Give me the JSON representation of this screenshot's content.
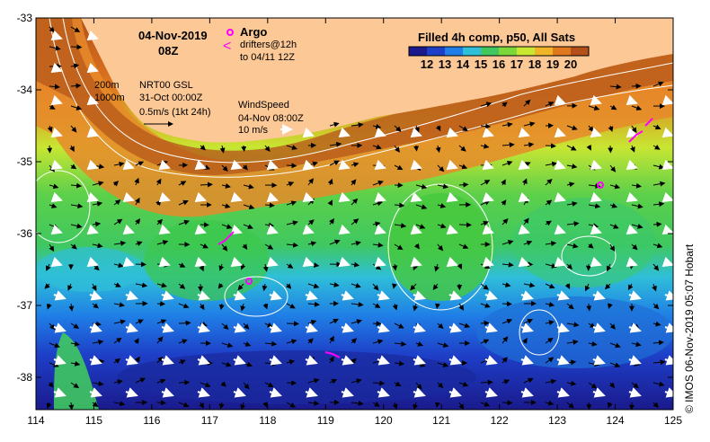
{
  "map": {
    "date": "04-Nov-2019",
    "time": "08Z",
    "product": "Filled 4h comp, p50, All Sats",
    "colorbar": {
      "ticks": [
        "12",
        "13",
        "14",
        "15",
        "16",
        "17",
        "18",
        "19",
        "20"
      ],
      "colors": [
        "#1a1a8c",
        "#1e3fc8",
        "#1f7fe6",
        "#2fbfd8",
        "#3fc860",
        "#7cd83a",
        "#c8e632",
        "#f0b428",
        "#e0781e",
        "#b4501a"
      ]
    },
    "legend_argo": "Argo",
    "legend_drifters": "drifters@12h",
    "legend_drifters_2": "to 04/11 12Z",
    "contour_200": "200m",
    "contour_1000": "1000m",
    "current_source": "NRT00 GSL",
    "current_time": "31-Oct 00:00Z",
    "current_scale": "0.5m/s (1kt 24h)",
    "wind_title": "WindSpeed",
    "wind_time": "04-Nov 08:00Z",
    "wind_scale": "10 m/s",
    "x_ticks": [
      "114",
      "115",
      "116",
      "117",
      "118",
      "119",
      "120",
      "121",
      "122",
      "123",
      "124",
      "125"
    ],
    "y_ticks": [
      "-33",
      "-34",
      "-35",
      "-36",
      "-37",
      "-38"
    ],
    "credit": "© IMOS 06-Nov-2019 05:07 Hobart",
    "land_color": "#fcc896"
  }
}
